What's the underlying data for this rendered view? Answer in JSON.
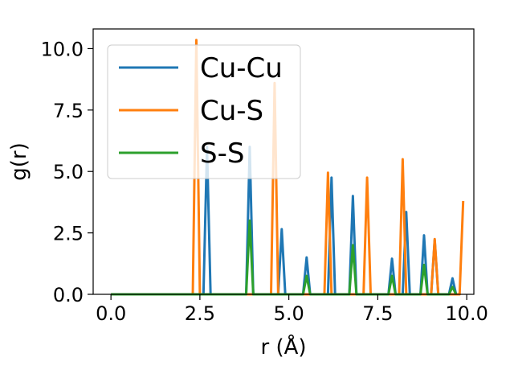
{
  "chart_data": {
    "type": "line",
    "xlabel": "r (Å)",
    "ylabel": "g(r)",
    "xlim": [
      -0.5,
      10.2
    ],
    "ylim": [
      0,
      10.8
    ],
    "xticks": [
      0,
      2.5,
      5,
      7.5,
      10
    ],
    "xtick_labels": [
      "0.0",
      "2.5",
      "5.0",
      "7.5",
      "10.0"
    ],
    "yticks": [
      0,
      2.5,
      5,
      7.5,
      10
    ],
    "ytick_labels": [
      "0.0",
      "2.5",
      "5.0",
      "7.5",
      "10.0"
    ],
    "grid": false,
    "legend_position": "top-left",
    "series": [
      {
        "name": "Cu-Cu",
        "color": "#1f77b4",
        "x": [
          0,
          2.6,
          2.7,
          2.8,
          3.8,
          3.9,
          4.0,
          4.7,
          4.8,
          4.9,
          5.4,
          5.5,
          5.6,
          6.1,
          6.2,
          6.3,
          6.7,
          6.8,
          6.9,
          7.8,
          7.9,
          8.0,
          8.2,
          8.3,
          8.4,
          8.7,
          8.8,
          8.9,
          9.0,
          9.1,
          9.2,
          9.5,
          9.6,
          9.7
        ],
        "y": [
          0,
          0,
          6.0,
          0,
          0,
          6.0,
          0,
          0,
          2.65,
          0,
          0,
          1.5,
          0,
          0,
          4.75,
          0,
          0,
          4.0,
          0,
          0,
          1.45,
          0,
          0,
          3.35,
          0,
          0,
          2.4,
          0,
          0,
          2.2,
          0,
          0,
          0.65,
          0
        ]
      },
      {
        "name": "Cu-S",
        "color": "#ff7f0e",
        "x": [
          0,
          2.3,
          2.4,
          2.5,
          4.5,
          4.6,
          4.7,
          6.0,
          6.1,
          6.2,
          7.1,
          7.2,
          7.3,
          8.1,
          8.2,
          8.3,
          9.0,
          9.1,
          9.2,
          9.8,
          9.9
        ],
        "y": [
          0,
          0,
          10.35,
          0,
          0,
          8.6,
          0,
          0,
          4.95,
          0,
          0,
          4.75,
          0,
          0,
          5.5,
          0,
          0,
          2.25,
          0,
          0,
          3.8
        ]
      },
      {
        "name": "S-S",
        "color": "#2ca02c",
        "x": [
          0,
          3.8,
          3.9,
          4.0,
          5.4,
          5.5,
          5.6,
          6.7,
          6.8,
          6.9,
          7.8,
          7.9,
          8.0,
          8.7,
          8.8,
          8.9,
          9.5,
          9.6,
          9.7
        ],
        "y": [
          0,
          0,
          3.0,
          0,
          0,
          0.75,
          0,
          0,
          2.0,
          0,
          0,
          0.75,
          0,
          0,
          1.2,
          0,
          0,
          0.3,
          0
        ]
      }
    ]
  }
}
